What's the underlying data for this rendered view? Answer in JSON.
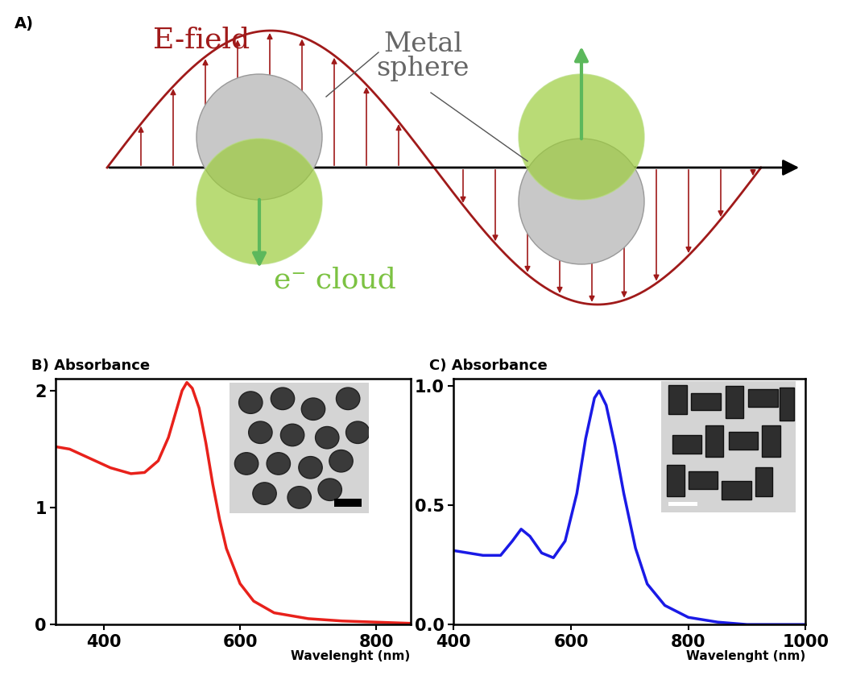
{
  "diagram": {
    "label": "A)",
    "wave_label": "E-field",
    "sphere_label": "Metal\nsphere",
    "cloud_label": "e⁻ cloud"
  },
  "chart_data": [
    {
      "type": "line",
      "title": "B) Absorbance",
      "x_label": "Wavelenght (nm)",
      "color": "#e8211b",
      "x": [
        330,
        350,
        380,
        410,
        440,
        460,
        480,
        495,
        505,
        515,
        522,
        530,
        540,
        550,
        560,
        570,
        580,
        600,
        620,
        650,
        700,
        750,
        800,
        850
      ],
      "values": [
        1.52,
        1.5,
        1.42,
        1.34,
        1.29,
        1.3,
        1.4,
        1.6,
        1.8,
        2.0,
        2.07,
        2.02,
        1.85,
        1.55,
        1.2,
        0.9,
        0.65,
        0.35,
        0.2,
        0.1,
        0.05,
        0.03,
        0.02,
        0.01
      ],
      "xlim": [
        330,
        850
      ],
      "ylim": [
        0,
        2.1
      ],
      "xticks": [
        400,
        600,
        800
      ],
      "yticks": [
        0,
        1,
        2
      ]
    },
    {
      "type": "line",
      "title": "C) Absorbance",
      "x_label": "Wavelenght (nm)",
      "color": "#1a1ae6",
      "x": [
        400,
        450,
        480,
        500,
        515,
        530,
        550,
        570,
        590,
        610,
        625,
        640,
        648,
        660,
        675,
        690,
        710,
        730,
        760,
        800,
        850,
        900,
        1000
      ],
      "values": [
        0.31,
        0.29,
        0.29,
        0.35,
        0.4,
        0.37,
        0.3,
        0.28,
        0.35,
        0.55,
        0.78,
        0.95,
        0.98,
        0.92,
        0.75,
        0.55,
        0.32,
        0.17,
        0.08,
        0.03,
        0.01,
        0.0,
        0.0
      ],
      "xlim": [
        400,
        1000
      ],
      "ylim": [
        0,
        1.03
      ],
      "xticks": [
        400,
        600,
        800,
        1000
      ],
      "yticks": [
        {
          "value": 0,
          "label": "0.0"
        },
        {
          "value": 0.5,
          "label": "0.5"
        },
        {
          "value": 1,
          "label": "1.0"
        }
      ]
    }
  ]
}
